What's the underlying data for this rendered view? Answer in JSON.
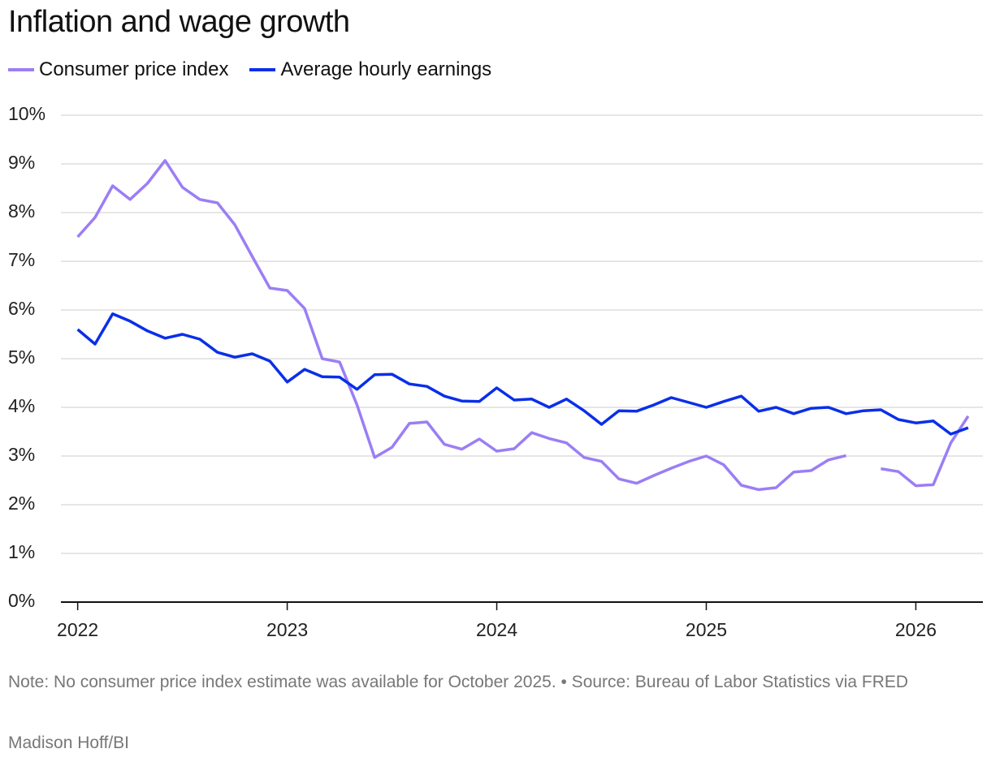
{
  "chart_data": {
    "type": "line",
    "title": "Inflation and wage growth",
    "x": [
      2022,
      2022.083,
      2022.167,
      2022.25,
      2022.333,
      2022.417,
      2022.5,
      2022.583,
      2022.667,
      2022.75,
      2022.833,
      2022.917,
      2023,
      2023.083,
      2023.167,
      2023.25,
      2023.333,
      2023.417,
      2023.5,
      2023.583,
      2023.667,
      2023.75,
      2023.833,
      2023.917,
      2024,
      2024.083,
      2024.167,
      2024.25,
      2024.333,
      2024.417,
      2024.5,
      2024.583,
      2024.667,
      2024.75,
      2024.833,
      2024.917,
      2025,
      2025.083,
      2025.167,
      2025.25,
      2025.333,
      2025.417,
      2025.5,
      2025.583,
      2025.667,
      2025.75,
      2025.833,
      2025.917,
      2026,
      2026.083,
      2026.167,
      2026.25
    ],
    "series": [
      {
        "name": "Consumer price index",
        "color": "#9b7ef5",
        "values": [
          7.5,
          7.9,
          8.55,
          8.27,
          8.6,
          9.07,
          8.52,
          8.27,
          8.2,
          7.75,
          7.1,
          6.45,
          6.4,
          6.03,
          5.0,
          4.93,
          4.05,
          2.97,
          3.18,
          3.67,
          3.7,
          3.24,
          3.14,
          3.35,
          3.1,
          3.15,
          3.48,
          3.36,
          3.27,
          2.97,
          2.89,
          2.53,
          2.44,
          2.6,
          2.75,
          2.89,
          3.0,
          2.82,
          2.4,
          2.31,
          2.35,
          2.67,
          2.7,
          2.92,
          3.01,
          null,
          2.74,
          2.68,
          2.39,
          2.41,
          3.27,
          3.82
        ]
      },
      {
        "name": "Average hourly earnings",
        "color": "#0a2fe8",
        "values": [
          5.6,
          5.3,
          5.92,
          5.77,
          5.57,
          5.42,
          5.5,
          5.4,
          5.13,
          5.03,
          5.1,
          4.95,
          4.52,
          4.78,
          4.63,
          4.62,
          4.37,
          4.67,
          4.68,
          4.48,
          4.43,
          4.23,
          4.13,
          4.12,
          4.4,
          4.15,
          4.17,
          4.0,
          4.17,
          3.93,
          3.65,
          3.93,
          3.92,
          4.05,
          4.2,
          4.1,
          4.0,
          4.12,
          4.23,
          3.92,
          4.0,
          3.87,
          3.98,
          4.0,
          3.87,
          3.93,
          3.95,
          3.75,
          3.68,
          3.72,
          3.45,
          3.58
        ]
      }
    ],
    "xlim": [
      2021.92,
      2026.32
    ],
    "xticks": [
      2022,
      2023,
      2024,
      2025,
      2026
    ],
    "ylim": [
      0,
      10
    ],
    "yticks": [
      {
        "value": 0,
        "label": "0%"
      },
      {
        "value": 1,
        "label": "1%"
      },
      {
        "value": 2,
        "label": "2%"
      },
      {
        "value": 3,
        "label": "3%"
      },
      {
        "value": 4,
        "label": "4%"
      },
      {
        "value": 5,
        "label": "5%"
      },
      {
        "value": 6,
        "label": "6%"
      },
      {
        "value": 7,
        "label": "7%"
      },
      {
        "value": 8,
        "label": "8%"
      },
      {
        "value": 9,
        "label": "9%"
      },
      {
        "value": 10,
        "label": "10%"
      }
    ],
    "grid": true,
    "note": "Note: No consumer price index estimate was available for October 2025. • Source: Bureau of Labor Statistics via FRED",
    "credit": "Madison Hoff/BI"
  }
}
